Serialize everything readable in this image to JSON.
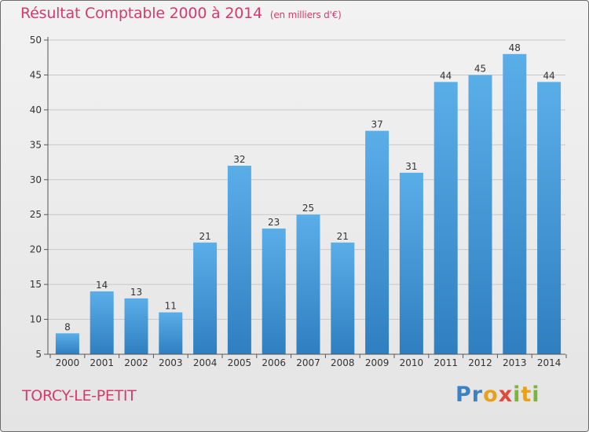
{
  "header": {
    "title": "Résultat Comptable 2000 à 2014",
    "subtitle": "(en milliers d'€)"
  },
  "footer": {
    "town": "TORCY-LE-PETIT",
    "logo": "Proxiti"
  },
  "colors": {
    "title": "#d63a6c",
    "bar_top": "#5aaee8",
    "bar_bottom": "#2f7fc0"
  },
  "chart_data": {
    "type": "bar",
    "title": "Résultat Comptable 2000 à 2014",
    "subtitle": "(en milliers d'€)",
    "xlabel": "",
    "ylabel": "",
    "ylim": [
      5,
      50
    ],
    "yticks": [
      5,
      10,
      15,
      20,
      25,
      30,
      35,
      40,
      45,
      50
    ],
    "grid": true,
    "categories": [
      "2000",
      "2001",
      "2002",
      "2003",
      "2004",
      "2005",
      "2006",
      "2007",
      "2008",
      "2009",
      "2010",
      "2011",
      "2012",
      "2013",
      "2014"
    ],
    "values": [
      8,
      14,
      13,
      11,
      21,
      32,
      23,
      25,
      21,
      37,
      31,
      44,
      45,
      48,
      44
    ]
  }
}
